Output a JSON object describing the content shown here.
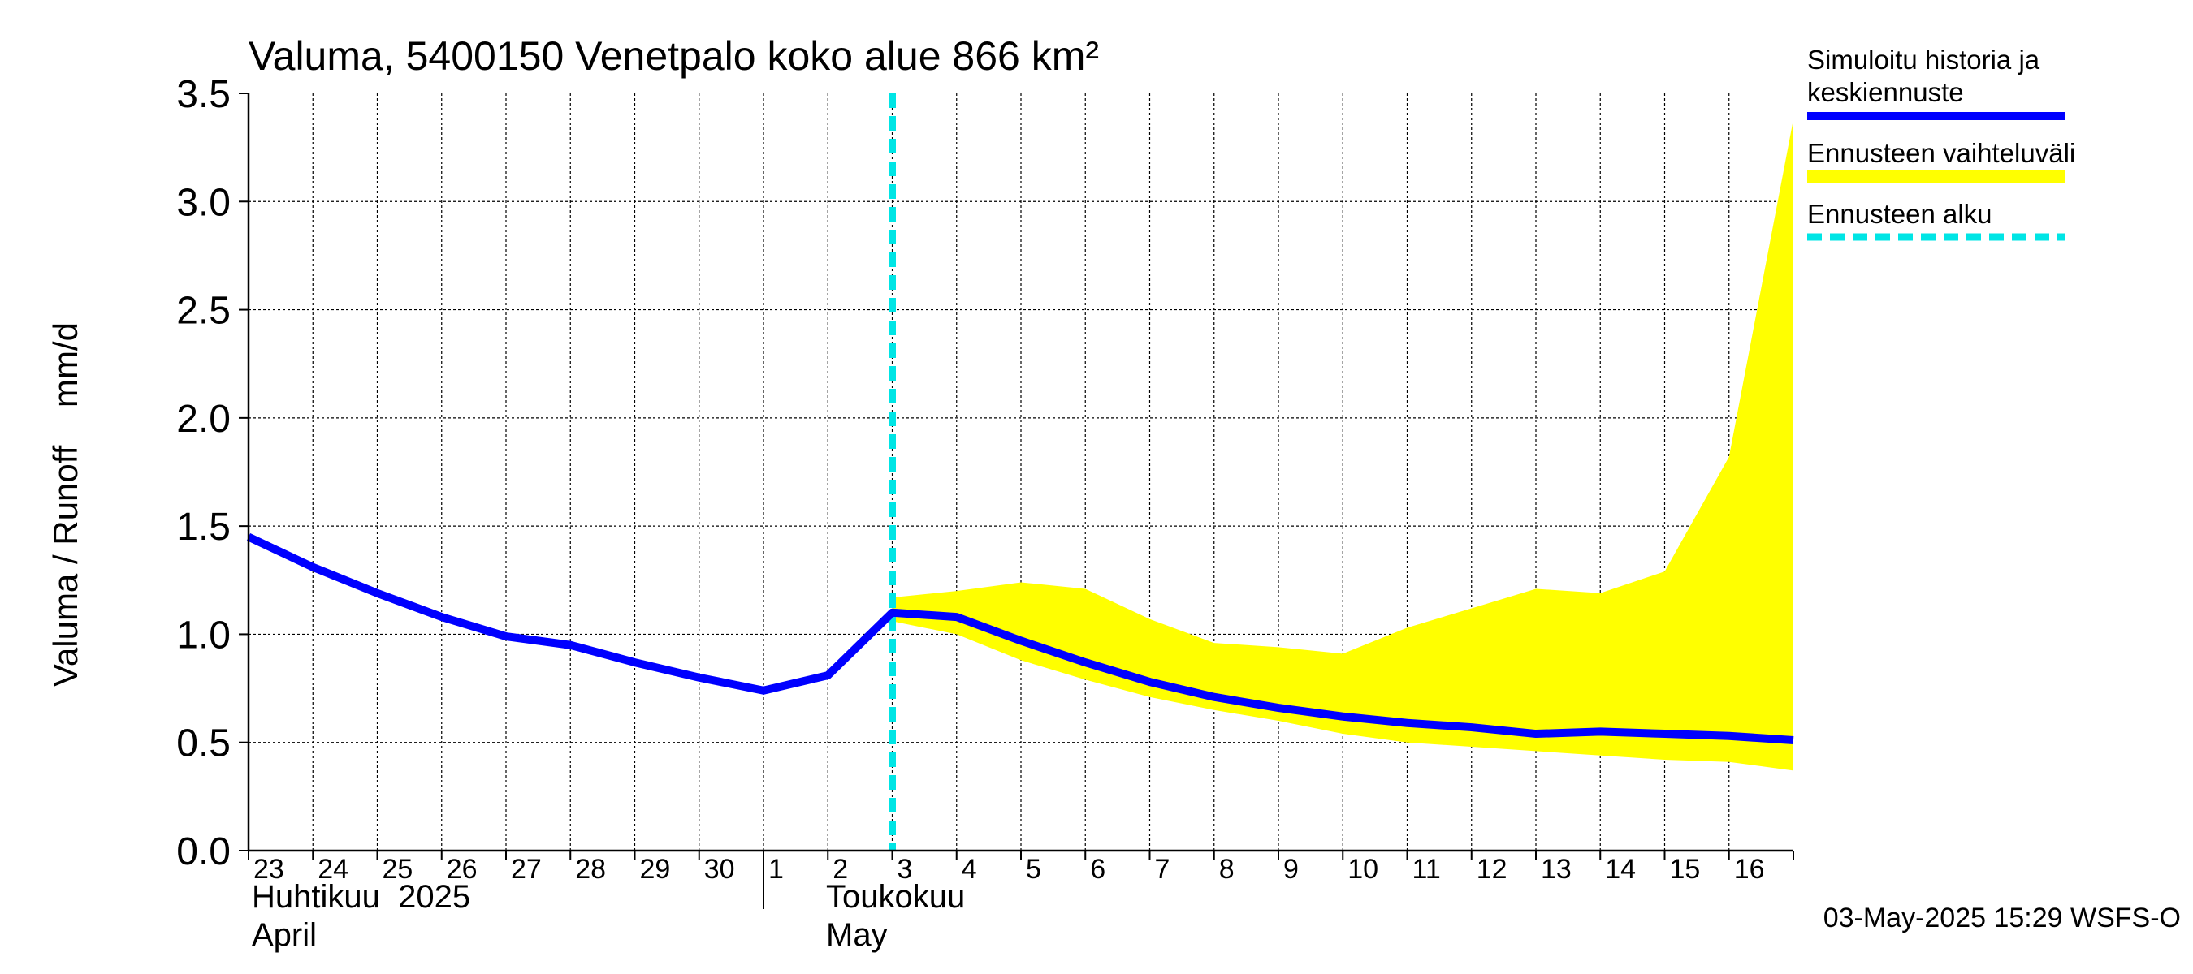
{
  "chart_data": {
    "type": "line",
    "title": "Valuma, 5400150 Venetpalo koko alue 866 km²",
    "ylabel": "Valuma / Runoff    mm/d",
    "ylim": [
      0,
      3.5
    ],
    "yticks": [
      "0.0",
      "0.5",
      "1.0",
      "1.5",
      "2.0",
      "2.5",
      "3.0",
      "3.5"
    ],
    "grid": true,
    "x_day_labels": [
      "23",
      "24",
      "25",
      "26",
      "27",
      "28",
      "29",
      "30",
      "1",
      "2",
      "3",
      "4",
      "5",
      "6",
      "7",
      "8",
      "9",
      "10",
      "11",
      "12",
      "13",
      "14",
      "15",
      "16"
    ],
    "month_labels": [
      {
        "line1": "Huhtikuu  2025",
        "line2": "April"
      },
      {
        "line1": "Toukokuu",
        "line2": "May"
      }
    ],
    "forecast_start_day": 10,
    "series": [
      {
        "name": "Simuloitu historia ja keskiennuste",
        "color": "#0000ff",
        "x": [
          0,
          1,
          2,
          3,
          4,
          5,
          6,
          7,
          8,
          9,
          10,
          11,
          12,
          13,
          14,
          15,
          16,
          17,
          18,
          19,
          20,
          21,
          22,
          23,
          24
        ],
        "values": [
          1.45,
          1.31,
          1.19,
          1.08,
          0.99,
          0.95,
          0.87,
          0.8,
          0.74,
          0.81,
          1.1,
          1.08,
          0.97,
          0.87,
          0.78,
          0.71,
          0.66,
          0.62,
          0.59,
          0.57,
          0.54,
          0.55,
          0.54,
          0.53,
          0.51
        ]
      },
      {
        "name": "Ennusteen vaihteluväli",
        "color": "#ffff00",
        "x": [
          10,
          11,
          12,
          13,
          14,
          15,
          16,
          17,
          18,
          19,
          20,
          21,
          22,
          23,
          24
        ],
        "upper": [
          1.17,
          1.2,
          1.24,
          1.21,
          1.07,
          0.96,
          0.94,
          0.91,
          1.03,
          1.12,
          1.21,
          1.19,
          1.29,
          1.82,
          3.38
        ],
        "lower": [
          1.06,
          1.0,
          0.88,
          0.79,
          0.71,
          0.65,
          0.6,
          0.54,
          0.5,
          0.48,
          0.46,
          0.44,
          0.42,
          0.41,
          0.37
        ]
      }
    ],
    "legend": {
      "placement": "right",
      "items": [
        {
          "label_line1": "Simuloitu historia ja",
          "label_line2": "keskiennuste",
          "color": "#0000ff",
          "style": "solid"
        },
        {
          "label_line1": "Ennusteen vaihteluväli",
          "label_line2": "",
          "color": "#ffff00",
          "style": "solid"
        },
        {
          "label_line1": "Ennusteen alku",
          "label_line2": "",
          "color": "#00e5e5",
          "style": "dashed"
        }
      ]
    },
    "footer": "03-May-2025 15:29 WSFS-O"
  }
}
